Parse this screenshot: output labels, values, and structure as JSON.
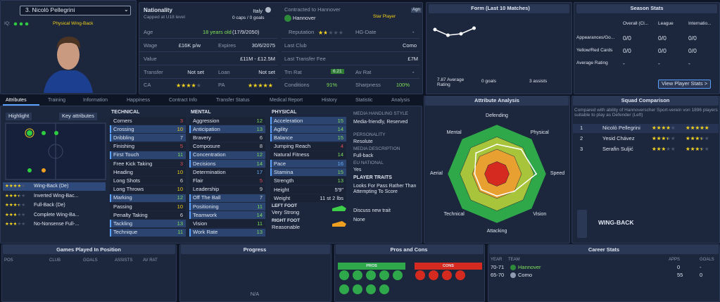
{
  "player": {
    "name": "3. Nicolò Pellegrini",
    "iq": "IQ:",
    "role": "Physical Wing-Back"
  },
  "profile": {
    "nationality_label": "Nationality",
    "nationality": "Italy",
    "capped": "Capped at U18 level",
    "caps": "0 caps / 0 goals",
    "contract": "Contracted to Hannover",
    "club": "Hannover",
    "status": "Star Player",
    "agent": "Agn",
    "age_label": "Age",
    "age": "18 years old",
    "dob": "(17/9/2050)",
    "wage_label": "Wage",
    "wage": "£16K p/w",
    "expires_label": "Expires",
    "expires": "30/6/2075",
    "value_label": "Value",
    "value": "£11M - £12.5M",
    "transfer_label": "Transfer",
    "transfer": "Not set",
    "loan_label": "Loan",
    "loan": "Not set",
    "ca_label": "CA",
    "ca_stars": 3.5,
    "pa_label": "PA",
    "pa_stars": 5,
    "reputation_label": "Reputation",
    "reputation_stars": 1.5,
    "hg_label": "HG-Date",
    "hg": "-",
    "last_club_label": "Last Club",
    "last_club": "Como",
    "fee_label": "Last Transfer Fee",
    "fee": "£7M",
    "trn_rat_label": "Trn Rat",
    "trn_rat": "6.21",
    "av_rat_label": "Av Rat",
    "av_rat": "-",
    "conditions_label": "Conditions",
    "conditions": "91%",
    "sharpness_label": "Sharpness",
    "sharpness": "100%"
  },
  "form": {
    "title": "Form (Last 10 Matches)",
    "ratings": [
      8.0,
      7.6,
      7.7,
      8.1
    ],
    "ylim": [
      7,
      9
    ],
    "average": "7.87 Average Rating",
    "goals": "0 goals",
    "assists": "3 assists"
  },
  "season": {
    "title": "Season Stats",
    "columns": [
      "Overall (Cl...",
      "League",
      "Internatio..."
    ],
    "rows": [
      [
        "Appearances/Go...",
        "0/0",
        "0/0",
        "0/0"
      ],
      [
        "Yellow/Red Cards",
        "0/0",
        "0/0",
        "0/0"
      ],
      [
        "Average Rating",
        "-",
        "-",
        "-"
      ]
    ],
    "button": "View Player Stats >"
  },
  "tabs": [
    "Attributes",
    "Training",
    "Information",
    "Happiness",
    "Contract Info",
    "Transfer Status",
    "Medical Report",
    "History",
    "Statistic",
    "Analysis"
  ],
  "positions": {
    "highlight": "Highlight",
    "key": "Key attributes",
    "roles": [
      {
        "name": "Wing-Back (De)",
        "stars": 3.5
      },
      {
        "name": "Inverted Wing-Bac...",
        "stars": 3
      },
      {
        "name": "Full-Back (De)",
        "stars": 3
      },
      {
        "name": "Complete Wing-Ba...",
        "stars": 2.5
      },
      {
        "name": "No-Nonsense Full-...",
        "stars": 2.5
      }
    ]
  },
  "attributes": {
    "technical": {
      "title": "TECHNICAL",
      "items": [
        [
          "Corners",
          3
        ],
        [
          "Crossing",
          10
        ],
        [
          "Dribbling",
          7
        ],
        [
          "Finishing",
          5
        ],
        [
          "First Touch",
          11
        ],
        [
          "Free Kick Taking",
          3
        ],
        [
          "Heading",
          10
        ],
        [
          "Long Shots",
          6
        ],
        [
          "Long Throws",
          10
        ],
        [
          "Marking",
          12
        ],
        [
          "Passing",
          10
        ],
        [
          "Penalty Taking",
          6
        ],
        [
          "Tackling",
          13
        ],
        [
          "Technique",
          11
        ]
      ]
    },
    "mental": {
      "title": "MENTAL",
      "items": [
        [
          "Aggression",
          12
        ],
        [
          "Anticipation",
          13
        ],
        [
          "Bravery",
          6
        ],
        [
          "Composure",
          8
        ],
        [
          "Concentration",
          12
        ],
        [
          "Decisions",
          14
        ],
        [
          "Determination",
          17
        ],
        [
          "Flair",
          5
        ],
        [
          "Leadership",
          9
        ],
        [
          "Off The Ball",
          7
        ],
        [
          "Positioning",
          11
        ],
        [
          "Teamwork",
          14
        ],
        [
          "Vision",
          11
        ],
        [
          "Work Rate",
          13
        ]
      ]
    },
    "physical": {
      "title": "PHYSICAL",
      "items": [
        [
          "Acceleration",
          15
        ],
        [
          "Agility",
          14
        ],
        [
          "Balance",
          15
        ],
        [
          "Jumping Reach",
          4
        ],
        [
          "Natural Fitness",
          14
        ],
        [
          "Pace",
          16
        ],
        [
          "Stamina",
          15
        ],
        [
          "Strength",
          13
        ]
      ],
      "height_label": "Height",
      "height": "5'9\"",
      "weight_label": "Weight",
      "weight": "11 st 2 lbs"
    },
    "feet": {
      "left_label": "LEFT FOOT",
      "left": "Very Strong",
      "right_label": "RIGHT FOOT",
      "right": "Reasonable"
    }
  },
  "media": {
    "items": [
      [
        "MEDIA HANDLING STYLE",
        "Media-friendly, Reserved"
      ],
      [
        "PERSONALITY",
        "Resolute"
      ],
      [
        "MEDIA DESCRIPTION",
        "Full-back"
      ],
      [
        "EU NATIONAL",
        "Yes"
      ]
    ],
    "traits_title": "PLAYER TRAITS",
    "trait": "Looks For Pass Rather Than Attempting To Score",
    "discuss": "Discuss new trait",
    "none": "None"
  },
  "analysis": {
    "title": "Attribute Analysis",
    "rlim": [
      0,
      20
    ],
    "axes": [
      "Defending",
      "Physical",
      "Speed",
      "Vision",
      "Attacking",
      "Technical",
      "Aerial",
      "Mental"
    ],
    "values": [
      12,
      14,
      16,
      10,
      9,
      9,
      9,
      12
    ]
  },
  "squad": {
    "title": "Squad Comparison",
    "note": "Compared with ability of Hannoverscher Sport-verein von 1896 players suitable to play as Defender (Left)",
    "players": [
      {
        "rank": "1",
        "name": "Nicolò Pellegrini",
        "ca": 3.5,
        "pa": 5
      },
      {
        "rank": "2",
        "name": "Yesid Chávez",
        "ca": 3,
        "pa": 3
      },
      {
        "rank": "3",
        "name": "Serafin Suljić",
        "ca": 2.5,
        "pa": 3
      }
    ],
    "position": "WING-BACK"
  },
  "games": {
    "title": "Games Played In Position",
    "columns": [
      "POS",
      "CLUB",
      "GOALS",
      "ASSISTS",
      "AV RAT"
    ]
  },
  "progress": {
    "title": "Progress",
    "empty": "N/A"
  },
  "pros_cons": {
    "title": "Pros and Cons",
    "pros": "PROS",
    "cons": "CONS"
  },
  "career": {
    "title": "Career Stats",
    "columns": [
      "YEAR",
      "TEAM",
      "APPS",
      "GOALS"
    ],
    "rows": [
      [
        "70-71",
        "Hannover",
        "0",
        "-"
      ],
      [
        "65-70",
        "Como",
        "55",
        "0"
      ]
    ]
  }
}
